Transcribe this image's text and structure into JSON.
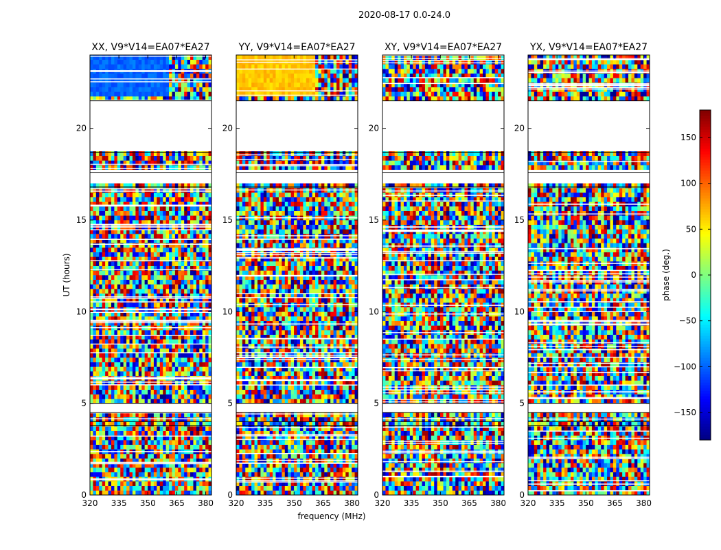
{
  "figure": {
    "suptitle": "2020-08-17 0.0-24.0",
    "xlabel": "frequency (MHz)",
    "ylabel": "UT (hours)",
    "colorbar_label": "phase (deg.)",
    "colorbar_ticks": [
      "150",
      "100",
      "50",
      "0",
      "−50",
      "−100",
      "−150"
    ],
    "colormap": "jet"
  },
  "chart_data": [
    {
      "type": "heatmap",
      "title": "XX, V9*V14=EA07*EA27",
      "xlabel": "frequency (MHz)",
      "ylabel": "UT (hours)",
      "xlim": [
        320,
        383
      ],
      "ylim": [
        0,
        24
      ],
      "clim": [
        -180,
        180
      ],
      "xticks": [
        320,
        335,
        350,
        365,
        380
      ],
      "yticks": [
        0,
        5,
        10,
        15,
        20
      ],
      "gaps_hours": [
        [
          18.7,
          21.5
        ],
        [
          16.8,
          17.6
        ],
        [
          4.5,
          5.0
        ],
        [
          3.8,
          4.0
        ]
      ],
      "coherent_phase_deg": -100
    },
    {
      "type": "heatmap",
      "title": "YY, V9*V14=EA07*EA27",
      "xlabel": "frequency (MHz)",
      "ylabel": "UT (hours)",
      "xlim": [
        320,
        383
      ],
      "ylim": [
        0,
        24
      ],
      "clim": [
        -180,
        180
      ],
      "xticks": [
        320,
        335,
        350,
        365,
        380
      ],
      "yticks": [
        0,
        5,
        10,
        15,
        20
      ],
      "gaps_hours": [
        [
          18.7,
          21.5
        ],
        [
          16.8,
          17.6
        ],
        [
          4.5,
          5.0
        ],
        [
          3.8,
          4.0
        ]
      ],
      "coherent_phase_deg": 65
    },
    {
      "type": "heatmap",
      "title": "XY, V9*V14=EA07*EA27",
      "xlabel": "frequency (MHz)",
      "ylabel": "UT (hours)",
      "xlim": [
        320,
        383
      ],
      "ylim": [
        0,
        24
      ],
      "clim": [
        -180,
        180
      ],
      "xticks": [
        320,
        335,
        350,
        365,
        380
      ],
      "yticks": [
        0,
        5,
        10,
        15,
        20
      ],
      "gaps_hours": [
        [
          18.7,
          21.5
        ],
        [
          16.8,
          17.6
        ],
        [
          4.5,
          5.0
        ],
        [
          3.8,
          4.0
        ]
      ],
      "coherent_phase_deg": null
    },
    {
      "type": "heatmap",
      "title": "YX, V9*V14=EA07*EA27",
      "xlabel": "frequency (MHz)",
      "ylabel": "UT (hours)",
      "xlim": [
        320,
        383
      ],
      "ylim": [
        0,
        24
      ],
      "clim": [
        -180,
        180
      ],
      "xticks": [
        320,
        335,
        350,
        365,
        380
      ],
      "yticks": [
        0,
        5,
        10,
        15,
        20
      ],
      "gaps_hours": [
        [
          18.7,
          21.5
        ],
        [
          16.8,
          17.6
        ],
        [
          4.5,
          5.0
        ],
        [
          3.8,
          4.0
        ]
      ],
      "coherent_phase_deg": null
    }
  ]
}
